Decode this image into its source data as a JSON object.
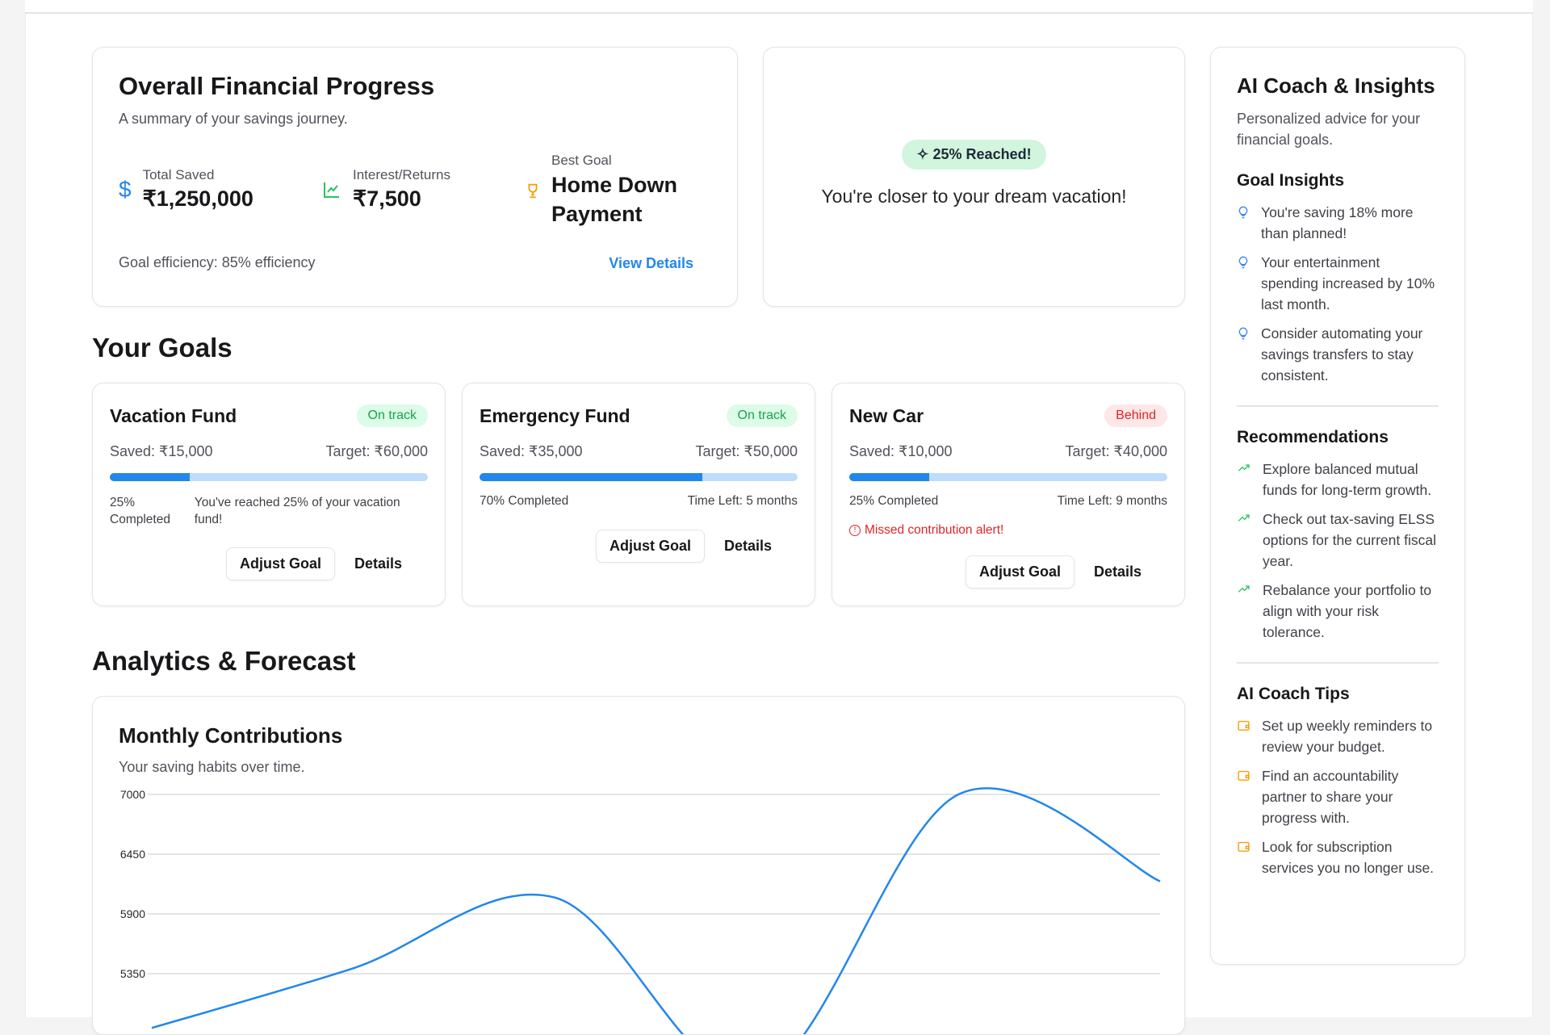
{
  "overview": {
    "title": "Overall Financial Progress",
    "subtitle": "A summary of your savings journey.",
    "total_saved_label": "Total Saved",
    "total_saved": "₹1,250,000",
    "interest_label": "Interest/Returns",
    "interest": "₹7,500",
    "best_goal_label": "Best Goal",
    "best_goal": "Home Down Payment",
    "efficiency": "Goal efficiency: 85% efficiency",
    "view_details": "View Details"
  },
  "milestone": {
    "badge": "25% Reached!",
    "message": "You're closer to your dream vacation!"
  },
  "goals_title": "Your Goals",
  "goals": [
    {
      "name": "Vacation Fund",
      "status": "On track",
      "saved": "Saved: ₹15,000",
      "target": "Target: ₹60,000",
      "progress": 25,
      "completed": "25% Completed",
      "note": "You've reached 25% of your vacation fund!",
      "adjust": "Adjust Goal",
      "details": "Details"
    },
    {
      "name": "Emergency Fund",
      "status": "On track",
      "saved": "Saved: ₹35,000",
      "target": "Target: ₹50,000",
      "progress": 70,
      "completed": "70% Completed",
      "note": "Time Left: 5 months",
      "adjust": "Adjust Goal",
      "details": "Details"
    },
    {
      "name": "New Car",
      "status": "Behind",
      "saved": "Saved: ₹10,000",
      "target": "Target: ₹40,000",
      "progress": 25,
      "completed": "25% Completed",
      "note": "Time Left: 9 months",
      "alert": "Missed contribution alert!",
      "adjust": "Adjust Goal",
      "details": "Details"
    }
  ],
  "analytics_title": "Analytics & Forecast",
  "chart_data": {
    "type": "line",
    "title": "Monthly Contributions",
    "subtitle": "Your saving habits over time.",
    "yticks": [
      7000,
      6450,
      5900,
      5350
    ],
    "ylim": [
      4250,
      7000
    ],
    "values": [
      4850,
      5400,
      6050,
      4400,
      7000,
      6200
    ],
    "color": "#2387ea",
    "grid": true
  },
  "coach": {
    "title": "AI Coach & Insights",
    "subtitle": "Personalized advice for your financial goals.",
    "insights_title": "Goal Insights",
    "insights": [
      "You're saving 18% more than planned!",
      "Your entertainment spending increased by 10% last month.",
      "Consider automating your savings transfers to stay consistent."
    ],
    "recs_title": "Recommendations",
    "recs": [
      "Explore balanced mutual funds for long-term growth.",
      "Check out tax-saving ELSS options for the current fiscal year.",
      "Rebalance your portfolio to align with your risk tolerance."
    ],
    "tips_title": "AI Coach Tips",
    "tips": [
      "Set up weekly reminders to review your budget.",
      "Find an accountability partner to share your progress with.",
      "Look for subscription services you no longer use."
    ]
  },
  "colors": {
    "accent": "#2387ea",
    "success": "#22c55e",
    "danger": "#dc2626",
    "amber": "#f59e0b"
  }
}
